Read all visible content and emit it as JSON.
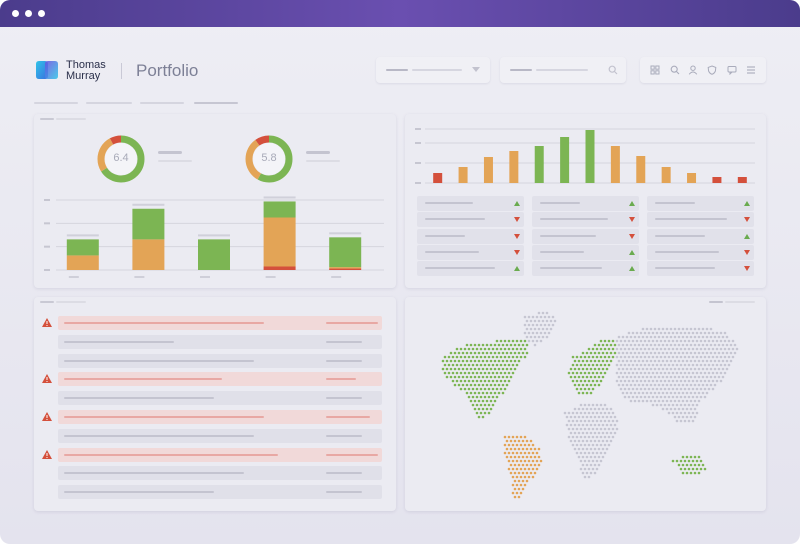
{
  "app": {
    "brand_line1": "Thomas",
    "brand_line2": "Murray",
    "page_title": "Portfolio"
  },
  "colors": {
    "titlebar": "#5a46a0",
    "green": "#7cb553",
    "orange": "#e3a456",
    "red": "#d4503c",
    "alert_row": "#f2dad9"
  },
  "header": {
    "icons": [
      "grid-icon",
      "search-icon",
      "user-icon",
      "shield-icon",
      "chat-icon",
      "menu-icon"
    ]
  },
  "donuts": [
    {
      "value": "6.4",
      "segments": [
        {
          "color": "#7cb553",
          "fraction": 0.66
        },
        {
          "color": "#e3a456",
          "fraction": 0.26
        },
        {
          "color": "#d4503c",
          "fraction": 0.08
        }
      ]
    },
    {
      "value": "5.8",
      "segments": [
        {
          "color": "#7cb553",
          "fraction": 0.58
        },
        {
          "color": "#e3a456",
          "fraction": 0.32
        },
        {
          "color": "#d4503c",
          "fraction": 0.1
        }
      ]
    }
  ],
  "chart_data": [
    {
      "type": "bar",
      "stacked": true,
      "categories": [
        "",
        "",
        "",
        "",
        ""
      ],
      "series": [
        {
          "color": "#d4503c",
          "values": [
            0,
            0,
            0,
            0.12,
            0.05
          ]
        },
        {
          "color": "#e3a456",
          "values": [
            0.5,
            1.05,
            0,
            1.68,
            0.05
          ]
        },
        {
          "color": "#7cb553",
          "values": [
            0.55,
            1.05,
            1.05,
            0.55,
            1.02
          ]
        }
      ],
      "ylim": [
        0,
        2.4
      ],
      "grid": true
    },
    {
      "type": "bar",
      "categories": [
        "",
        "",
        "",
        "",
        "",
        "",
        "",
        "",
        "",
        "",
        "",
        "",
        ""
      ],
      "values": [
        0.5,
        0.8,
        1.3,
        1.6,
        1.85,
        2.3,
        2.65,
        1.85,
        1.35,
        0.8,
        0.5,
        0.3,
        0.3
      ],
      "colors": [
        "#d4503c",
        "#e3a456",
        "#e3a456",
        "#e3a456",
        "#7cb553",
        "#7cb553",
        "#7cb553",
        "#e3a456",
        "#e3a456",
        "#e3a456",
        "#e3a456",
        "#d4503c",
        "#d4503c"
      ],
      "grid": true
    }
  ],
  "trend_table": {
    "columns": [
      [
        "up",
        "down",
        "down",
        "down",
        "up"
      ],
      [
        "up",
        "down",
        "down",
        "up",
        "up"
      ],
      [
        "up",
        "down",
        "up",
        "down",
        "down"
      ]
    ]
  },
  "alerts_list": {
    "rows": [
      "alert",
      "normal",
      "normal",
      "alert",
      "normal",
      "alert",
      "normal",
      "alert",
      "normal",
      "normal"
    ]
  },
  "map": {
    "highlighted_regions": [
      {
        "region": "North America",
        "color": "#7cb553"
      },
      {
        "region": "South America",
        "color": "#e3a456"
      },
      {
        "region": "Europe",
        "color": "#7cb553"
      },
      {
        "region": "Australia",
        "color": "#7cb553"
      }
    ]
  }
}
